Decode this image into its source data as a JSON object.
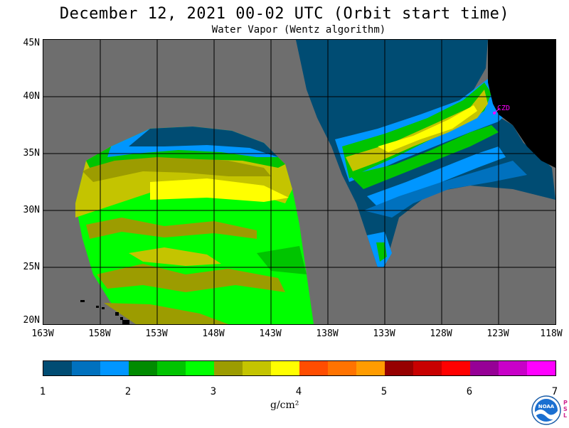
{
  "title": "December 12, 2021  00-02 UTC  (Orbit start time)",
  "subtitle": "Water Vapor (Wentz algorithm)",
  "map": {
    "lat_labels": [
      "45N",
      "40N",
      "35N",
      "30N",
      "25N",
      "20N"
    ],
    "lon_labels": [
      "163W",
      "158W",
      "153W",
      "148W",
      "143W",
      "138W",
      "133W",
      "128W",
      "123W",
      "118W"
    ],
    "station_label": "CZD",
    "colors": {
      "no_data": "#6e6e6e",
      "land": "#000000",
      "grid": "#000000",
      "station": "#ff00ff"
    }
  },
  "colorbar": {
    "colors": [
      "#004c73",
      "#0071be",
      "#0096ff",
      "#008b00",
      "#00c400",
      "#00ff00",
      "#9c9c00",
      "#c4c400",
      "#ffff00",
      "#ff4d00",
      "#ff7300",
      "#ff9c00",
      "#960000",
      "#c80000",
      "#ff0000",
      "#960096",
      "#c800c8",
      "#ff00ff"
    ],
    "ticks": [
      "1",
      "2",
      "3",
      "4",
      "5",
      "6",
      "7"
    ],
    "units": "g/cm²"
  },
  "logo": {
    "text": "NOAA",
    "side_text": [
      "P",
      "S",
      "L"
    ]
  }
}
